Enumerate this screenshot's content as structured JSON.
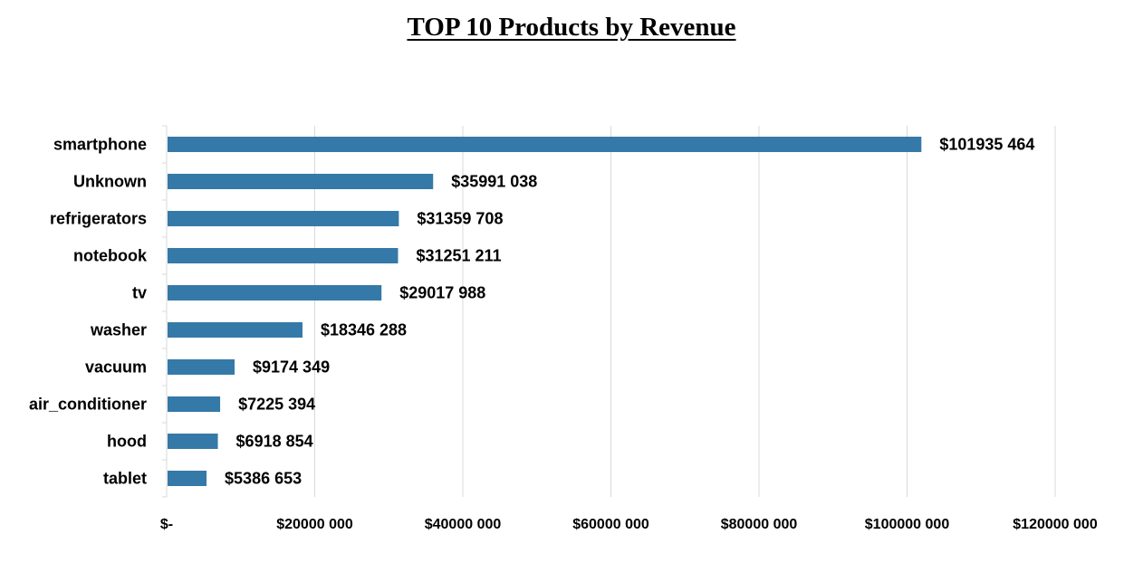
{
  "chart_data": {
    "type": "bar",
    "orientation": "horizontal",
    "title": "TOP 10 Products by Revenue",
    "xlabel": "",
    "ylabel": "",
    "categories": [
      "smartphone",
      "Unknown",
      "refrigerators",
      "notebook",
      "tv",
      "washer",
      "vacuum",
      "air_conditioner",
      "hood",
      "tablet"
    ],
    "values": [
      101935464,
      35991038,
      31359708,
      31251211,
      29017988,
      18346288,
      9174349,
      7225394,
      6918854,
      5386653
    ],
    "value_labels": [
      "$101935 464",
      "$35991 038",
      "$31359 708",
      "$31251 211",
      "$29017 988",
      "$18346 288",
      "$9174 349",
      "$7225 394",
      "$6918 854",
      "$5386 653"
    ],
    "xlim": [
      0,
      120000000
    ],
    "x_ticks": [
      0,
      20000000,
      40000000,
      60000000,
      80000000,
      100000000,
      120000000
    ],
    "x_tick_labels": [
      "$-",
      "$20000 000",
      "$40000 000",
      "$60000 000",
      "$80000 000",
      "$100000 000",
      "$120000 000"
    ],
    "grid": true,
    "legend": "none",
    "bar_color": "#3579a8",
    "grid_color": "#d9d9d9"
  }
}
